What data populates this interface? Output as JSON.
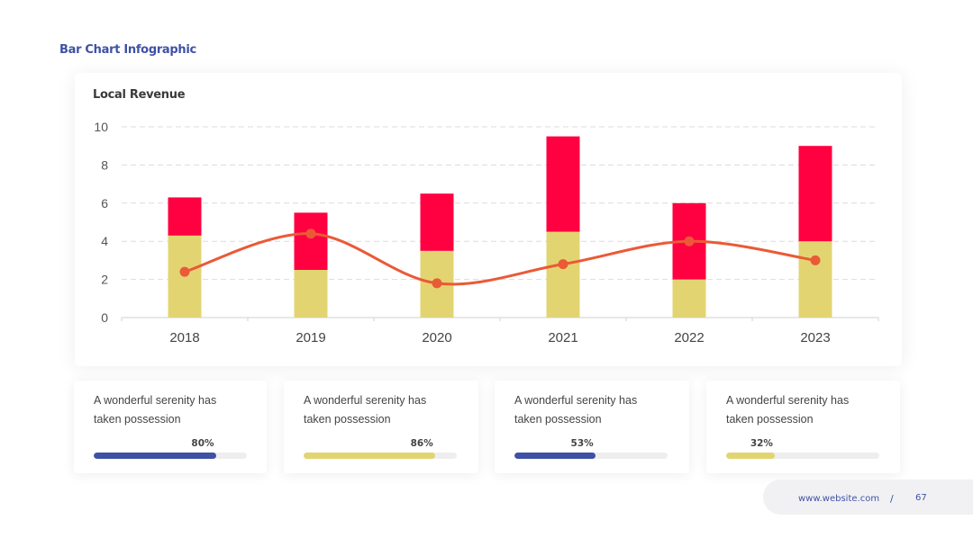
{
  "header": {
    "title": "Bar Chart  Infographic"
  },
  "colors": {
    "accent_blue": "#3f51a5",
    "bar_lower": "#e3d472",
    "bar_upper": "#ff0040",
    "line": "#ea5a36",
    "text_dark": "#444444"
  },
  "chart_data": {
    "type": "bar",
    "stacked": true,
    "title": "Local Revenue",
    "categories": [
      "2018",
      "2019",
      "2020",
      "2021",
      "2022",
      "2023"
    ],
    "series": [
      {
        "values": [
          4.3,
          2.5,
          3.5,
          4.5,
          2.0,
          4.0
        ],
        "color": "#e3d472",
        "kind": "bar"
      },
      {
        "values": [
          2.0,
          3.0,
          3.0,
          5.0,
          4.0,
          5.0
        ],
        "color": "#ff0040",
        "kind": "bar"
      },
      {
        "values": [
          2.4,
          4.4,
          1.8,
          2.8,
          4.0,
          3.0
        ],
        "color": "#ea5a36",
        "kind": "line",
        "smooth": true
      }
    ],
    "yticks": [
      "0",
      "2",
      "4",
      "6",
      "8",
      "10"
    ],
    "ylim": [
      0,
      10
    ],
    "grid": true,
    "xlabel": "",
    "ylabel": ""
  },
  "stats": [
    {
      "text": "A wonderful serenity has taken possession",
      "percent": 80,
      "label": "80%",
      "color": "#3f51a5"
    },
    {
      "text": "A wonderful serenity has taken possession",
      "percent": 86,
      "label": "86%",
      "color": "#e3d472"
    },
    {
      "text": "A wonderful serenity has taken possession",
      "percent": 53,
      "label": "53%",
      "color": "#3f51a5"
    },
    {
      "text": "A wonderful serenity has taken possession",
      "percent": 32,
      "label": "32%",
      "color": "#e3d472"
    }
  ],
  "footer": {
    "url": "www.website.com",
    "separator": "/",
    "page": "67"
  }
}
